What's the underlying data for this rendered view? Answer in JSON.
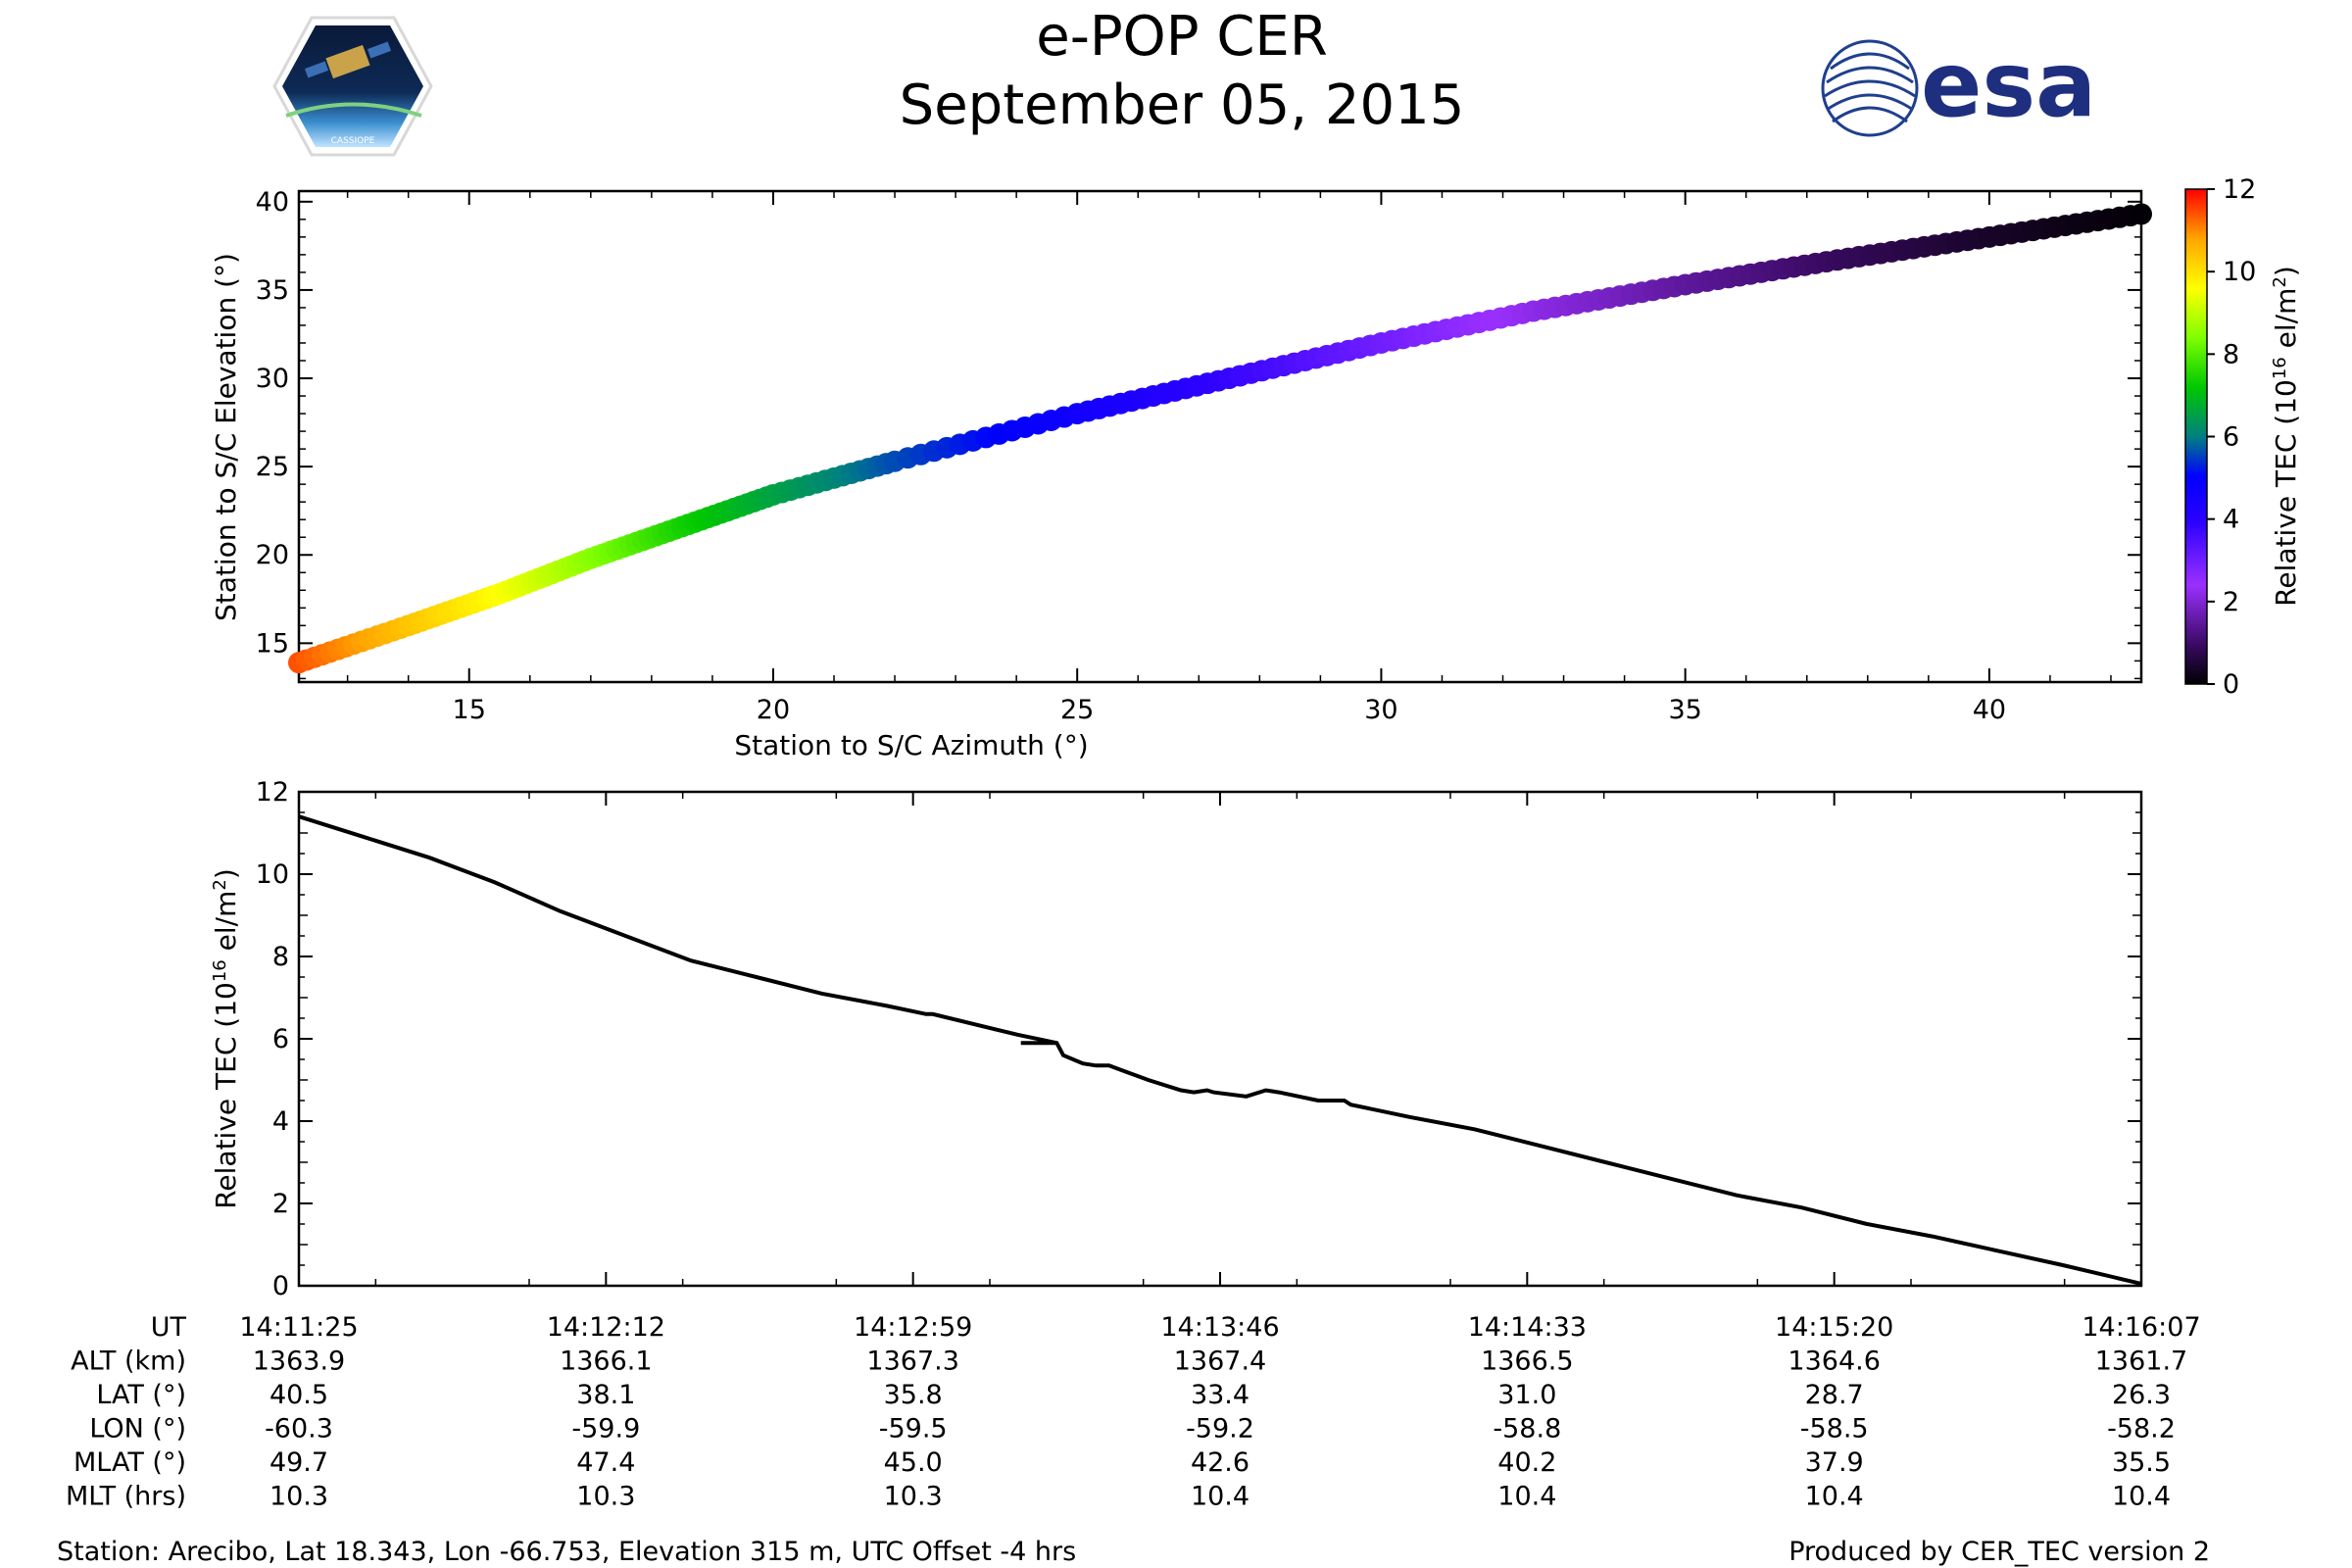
{
  "header": {
    "title": "e-POP CER",
    "date": "September 05, 2015",
    "logo_left": "CASSIOPE",
    "logo_right": "esa"
  },
  "colors": {
    "colormap": [
      "#000000",
      "#3a0a63",
      "#9b30ff",
      "#2a00ff",
      "#0000ff",
      "#008080",
      "#00c800",
      "#7fff00",
      "#ffff00",
      "#ffa500",
      "#ff0000"
    ]
  },
  "chart_data": [
    {
      "type": "scatter",
      "xlabel": "Station to S/C Azimuth (°)",
      "ylabel": "Station to S/C Elevation (°)",
      "xlim": [
        12.2,
        42.5
      ],
      "ylim": [
        12.8,
        40.6
      ],
      "xticks": [
        15,
        20,
        25,
        30,
        35,
        40
      ],
      "yticks": [
        15,
        20,
        25,
        30,
        35,
        40
      ],
      "color_by": "Relative TEC",
      "points": [
        {
          "x": 12.2,
          "y": 13.9,
          "c": 11.4
        },
        {
          "x": 14.0,
          "y": 16.0,
          "c": 10.4
        },
        {
          "x": 15.5,
          "y": 17.8,
          "c": 9.6
        },
        {
          "x": 17.0,
          "y": 19.8,
          "c": 8.5
        },
        {
          "x": 18.5,
          "y": 21.6,
          "c": 7.4
        },
        {
          "x": 20.0,
          "y": 23.4,
          "c": 6.6
        },
        {
          "x": 22.0,
          "y": 25.3,
          "c": 5.6
        },
        {
          "x": 25.0,
          "y": 28.0,
          "c": 4.6
        },
        {
          "x": 27.5,
          "y": 30.0,
          "c": 3.8
        },
        {
          "x": 30.0,
          "y": 32.0,
          "c": 3.0
        },
        {
          "x": 32.5,
          "y": 33.8,
          "c": 2.2
        },
        {
          "x": 35.0,
          "y": 35.3,
          "c": 1.5
        },
        {
          "x": 37.5,
          "y": 36.7,
          "c": 0.9
        },
        {
          "x": 40.0,
          "y": 38.0,
          "c": 0.4
        },
        {
          "x": 42.5,
          "y": 39.3,
          "c": 0.05
        }
      ],
      "colorbar": {
        "label": "Relative TEC (10",
        "label_sup": "16",
        "label_end": " el/m",
        "label_sup2": "2",
        "label_close": ")",
        "range": [
          0,
          12
        ],
        "ticks": [
          0,
          2,
          4,
          6,
          8,
          10,
          12
        ]
      }
    },
    {
      "type": "line",
      "xlabel": "",
      "ylabel": "Relative TEC (10",
      "ylabel_sup": "16",
      "ylabel_end": " el/m",
      "ylabel_sup2": "2",
      "ylabel_close": ")",
      "xlim": [
        0,
        282
      ],
      "ylim": [
        0,
        12
      ],
      "yticks": [
        0,
        2,
        4,
        6,
        8,
        10,
        12
      ],
      "series": [
        {
          "x": [
            0,
            10,
            20,
            30,
            40,
            50,
            60,
            70,
            80,
            90,
            96,
            97,
            110,
            116,
            110.5,
            116,
            117,
            120,
            122,
            124,
            130,
            135,
            137,
            139,
            140,
            145,
            148,
            150,
            156,
            160,
            161,
            170,
            180,
            190,
            200,
            210,
            220,
            230,
            240,
            250,
            260,
            270,
            282
          ],
          "y": [
            11.4,
            10.9,
            10.4,
            9.8,
            9.1,
            8.5,
            7.9,
            7.5,
            7.1,
            6.8,
            6.6,
            6.6,
            6.1,
            5.9,
            5.9,
            5.9,
            5.6,
            5.4,
            5.35,
            5.35,
            5.0,
            4.75,
            4.7,
            4.75,
            4.7,
            4.6,
            4.75,
            4.7,
            4.5,
            4.5,
            4.4,
            4.1,
            3.8,
            3.4,
            3.0,
            2.6,
            2.2,
            1.9,
            1.5,
            1.2,
            0.85,
            0.5,
            0.05
          ]
        }
      ]
    }
  ],
  "table": {
    "row_labels": [
      "UT",
      "ALT (km)",
      "LAT (°)",
      "LON (°)",
      "MLAT (°)",
      "MLT (hrs)"
    ],
    "columns": [
      [
        "14:11:25",
        "1363.9",
        "40.5",
        "-60.3",
        "49.7",
        "10.3"
      ],
      [
        "14:12:12",
        "1366.1",
        "38.1",
        "-59.9",
        "47.4",
        "10.3"
      ],
      [
        "14:12:59",
        "1367.3",
        "35.8",
        "-59.5",
        "45.0",
        "10.3"
      ],
      [
        "14:13:46",
        "1367.4",
        "33.4",
        "-59.2",
        "42.6",
        "10.4"
      ],
      [
        "14:14:33",
        "1366.5",
        "31.0",
        "-58.8",
        "40.2",
        "10.4"
      ],
      [
        "14:15:20",
        "1364.6",
        "28.7",
        "-58.5",
        "37.9",
        "10.4"
      ],
      [
        "14:16:07",
        "1361.7",
        "26.3",
        "-58.2",
        "35.5",
        "10.4"
      ]
    ]
  },
  "footer": {
    "station": "Station: Arecibo, Lat 18.343, Lon -66.753, Elevation 315 m, UTC Offset -4 hrs",
    "produced_by": "Produced by CER_TEC version 2"
  }
}
